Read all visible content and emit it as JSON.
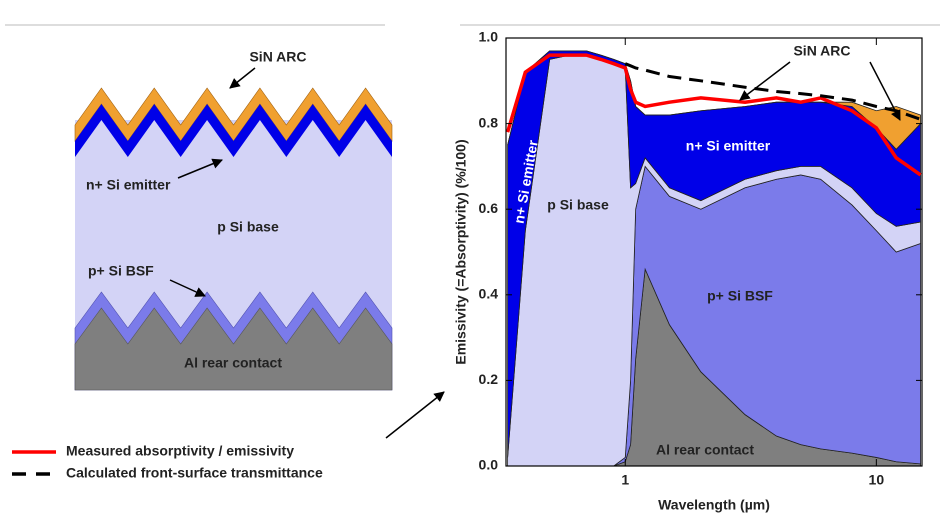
{
  "chart_data": {
    "type": "area",
    "xscale": "log",
    "x_label": "Wavelength (µm)",
    "y_label": "Emissivity (=Absorptivity) (%/100)",
    "x": [
      0.34,
      0.4,
      0.5,
      0.6,
      0.7,
      0.8,
      0.9,
      1.0,
      1.05,
      1.1,
      1.2,
      1.5,
      2,
      3,
      4,
      5,
      6,
      8,
      10,
      12,
      15
    ],
    "xlim": [
      0.335,
      15.2
    ],
    "xticks": [
      1,
      10
    ],
    "ylim": [
      0,
      1
    ],
    "yticks": [
      {
        "value": 0,
        "label": "0.0"
      },
      0.2,
      0.4,
      0.6,
      0.8,
      {
        "value": 1,
        "label": "1.0"
      }
    ],
    "series": [
      {
        "name": "Al rear contact",
        "color": "#7f7f7f",
        "values": [
          0,
          0,
          0,
          0,
          0,
          0,
          0,
          0.01,
          0.05,
          0.25,
          0.46,
          0.33,
          0.22,
          0.12,
          0.07,
          0.05,
          0.04,
          0.03,
          0.02,
          0.01,
          0.005
        ]
      },
      {
        "name": "p+ Si BSF",
        "color": "#7b7bea",
        "values": [
          0,
          0,
          0,
          0,
          0,
          0,
          0,
          0.01,
          0.15,
          0.35,
          0.24,
          0.3,
          0.38,
          0.53,
          0.6,
          0.63,
          0.63,
          0.58,
          0.53,
          0.49,
          0.515
        ]
      },
      {
        "name": "p Si base",
        "color": "#d3d3f6",
        "values": [
          0.02,
          0.55,
          0.95,
          0.96,
          0.96,
          0.95,
          0.94,
          0.91,
          0.45,
          0.06,
          0.02,
          0.02,
          0.02,
          0.02,
          0.02,
          0.02,
          0.03,
          0.04,
          0.04,
          0.06,
          0.05
        ]
      },
      {
        "name": "n+ Si emitter",
        "color": "#0000e8",
        "values": [
          0.73,
          0.37,
          0.02,
          0.01,
          0.01,
          0.01,
          0.01,
          0.01,
          0.25,
          0.18,
          0.1,
          0.17,
          0.21,
          0.17,
          0.16,
          0.15,
          0.15,
          0.19,
          0.2,
          0.18,
          0.23
        ]
      },
      {
        "name": "SiN ARC",
        "color": "#f0a030",
        "values": [
          0,
          0,
          0,
          0,
          0,
          0,
          0,
          0,
          0,
          0,
          0,
          0,
          0,
          0,
          0,
          0,
          0,
          0.01,
          0.04,
          0.1,
          0.02
        ]
      },
      {
        "name": "Measured absorptivity / emissivity",
        "type": "line",
        "color": "#ff0000",
        "values": [
          0.78,
          0.92,
          0.96,
          0.96,
          0.96,
          0.95,
          0.94,
          0.93,
          0.88,
          0.85,
          0.84,
          0.85,
          0.86,
          0.85,
          0.86,
          0.85,
          0.86,
          0.83,
          0.79,
          0.72,
          0.68
        ]
      },
      {
        "name": "Calculated front-surface transmittance",
        "type": "line",
        "dash": true,
        "color": "#000000",
        "values": [
          null,
          null,
          null,
          null,
          null,
          null,
          null,
          0.94,
          0.935,
          0.93,
          0.925,
          0.91,
          0.9,
          0.885,
          0.875,
          0.87,
          0.865,
          0.855,
          0.84,
          0.83,
          0.81
        ]
      }
    ]
  }
}
